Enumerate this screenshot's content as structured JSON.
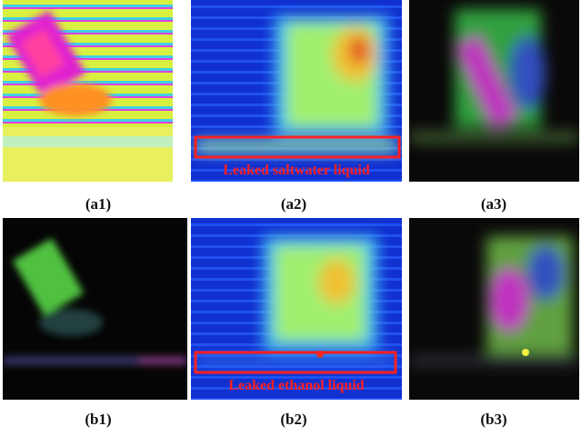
{
  "panels": [
    {
      "caption": "(a1)"
    },
    {
      "caption": "(a2)",
      "annotation": "Leaked saltwater liquid"
    },
    {
      "caption": "(a3)"
    },
    {
      "caption": "(b1)"
    },
    {
      "caption": "(b2)",
      "annotation": "Leaked ethanol liquid"
    },
    {
      "caption": "(b3)"
    }
  ]
}
